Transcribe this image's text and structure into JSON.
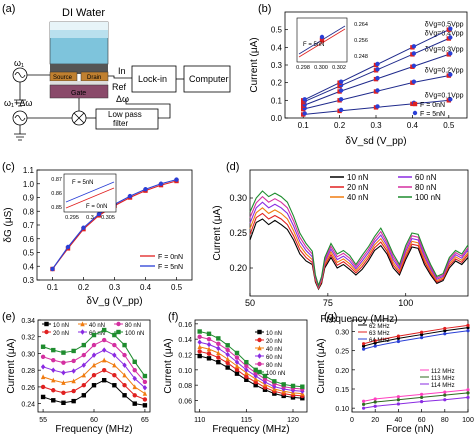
{
  "schematic": {
    "panel_label": "(a)",
    "water_label": "DI Water",
    "source_label": "Source",
    "drain_label": "Drain",
    "gate_label": "Gate",
    "omega1": "ω₁",
    "omega2": "ω₁+Δω",
    "in_label": "In",
    "ref_label": "Ref",
    "delta_omega": "Δω",
    "lockin_label": "Lock-in",
    "computer_label": "Computer",
    "lpf_label_1": "Low pass",
    "lpf_label_2": "filter"
  },
  "colors": {
    "navy": "#1f2a8c",
    "red": "#e02020",
    "blue": "#2a3fd6",
    "black": "#000000",
    "orange": "#f07c10",
    "purple": "#8a2be2",
    "green": "#1e8c2e",
    "magenta": "#d42fa0",
    "dark_green": "#2e6b1e",
    "pink": "#ff3fbf",
    "water": "#7ec4dc",
    "gate": "#8a4a6a",
    "contact": "#c08030"
  },
  "chart_data": [
    {
      "panel": "(b)",
      "type": "line",
      "xlabel": "δV_sd (V_pp)",
      "ylabel": "Current (μA)",
      "xlim": [
        0.05,
        0.55
      ],
      "ylim": [
        0,
        0.6
      ],
      "xticks": [
        "0.1",
        "0.2",
        "0.3",
        "0.4",
        "0.5"
      ],
      "yticks": [
        "0.0",
        "0.1",
        "0.2",
        "0.3",
        "0.4",
        "0.5"
      ],
      "x": [
        0.1,
        0.2,
        0.3,
        0.4,
        0.5
      ],
      "groups": [
        {
          "label": "δVg=0.1Vpp",
          "values": [
            0.02,
            0.04,
            0.06,
            0.08,
            0.1
          ]
        },
        {
          "label": "δVg=0.2Vpp",
          "values": [
            0.05,
            0.1,
            0.15,
            0.2,
            0.24
          ]
        },
        {
          "label": "δVg=0.3Vpp",
          "values": [
            0.07,
            0.15,
            0.22,
            0.29,
            0.36
          ]
        },
        {
          "label": "δVg=0.4Vpp",
          "values": [
            0.09,
            0.18,
            0.27,
            0.36,
            0.45
          ]
        },
        {
          "label": "δVg=0.5Vpp",
          "values": [
            0.1,
            0.2,
            0.3,
            0.4,
            0.5
          ]
        }
      ],
      "legend": [
        "F = 0nN",
        "F = 5nN"
      ],
      "inset": {
        "xticks": [
          "0.298",
          "0.300",
          "0.302"
        ],
        "yticks": [
          "0.248",
          "0.256",
          "0.264"
        ],
        "label": "F = 5nN"
      }
    },
    {
      "panel": "(c)",
      "type": "line",
      "xlabel": "δV_g (V_pp)",
      "ylabel": "δG (μS)",
      "xlim": [
        0.05,
        0.55
      ],
      "ylim": [
        0.3,
        1.1
      ],
      "xticks": [
        "0.1",
        "0.2",
        "0.3",
        "0.4",
        "0.5"
      ],
      "yticks": [
        "0.3",
        "0.4",
        "0.5",
        "0.6",
        "0.7",
        "0.8",
        "0.9",
        "1.0",
        "1.1"
      ],
      "x": [
        0.1,
        0.15,
        0.2,
        0.25,
        0.3,
        0.35,
        0.4,
        0.45,
        0.5
      ],
      "series": [
        {
          "name": "F = 0nN",
          "values": [
            0.38,
            0.53,
            0.67,
            0.77,
            0.84,
            0.9,
            0.95,
            0.99,
            1.02
          ]
        },
        {
          "name": "F = 5nN",
          "values": [
            0.38,
            0.54,
            0.68,
            0.78,
            0.85,
            0.91,
            0.96,
            1.0,
            1.03
          ]
        }
      ],
      "inset": {
        "xticks": [
          "0.295",
          "0.3",
          "0.305"
        ],
        "yticks": [
          "0.85",
          "0.86",
          "0.87"
        ],
        "label_top": "F = 5nN",
        "label_bottom": "F = 0nN"
      }
    },
    {
      "panel": "(d)",
      "type": "line",
      "xlabel": "Frequency (MHz)",
      "ylabel": "Current (μA)",
      "xlim": [
        50,
        120
      ],
      "ylim": [
        0.16,
        0.34
      ],
      "xticks": [
        "50",
        "75",
        "100"
      ],
      "yticks": [
        "0.20",
        "0.25",
        "0.30"
      ],
      "x": [
        50,
        52,
        54,
        56,
        58,
        60,
        62,
        64,
        66,
        68,
        70,
        71,
        72,
        73,
        74,
        76,
        78,
        80,
        82,
        84,
        86,
        88,
        90,
        92,
        94,
        96,
        98,
        100,
        102,
        104,
        106,
        108,
        110,
        112,
        114,
        116,
        118,
        120
      ],
      "series": [
        {
          "name": "10 nN",
          "values": [
            0.24,
            0.265,
            0.27,
            0.262,
            0.268,
            0.262,
            0.255,
            0.24,
            0.22,
            0.21,
            0.205,
            0.18,
            0.17,
            0.178,
            0.2,
            0.215,
            0.2,
            0.205,
            0.198,
            0.19,
            0.198,
            0.21,
            0.225,
            0.232,
            0.22,
            0.2,
            0.19,
            0.212,
            0.23,
            0.228,
            0.205,
            0.19,
            0.178,
            0.182,
            0.2,
            0.21,
            0.205,
            0.215
          ]
        },
        {
          "name": "20 nN",
          "values": [
            0.248,
            0.272,
            0.278,
            0.27,
            0.275,
            0.27,
            0.262,
            0.246,
            0.226,
            0.215,
            0.208,
            0.182,
            0.171,
            0.18,
            0.203,
            0.219,
            0.204,
            0.209,
            0.202,
            0.193,
            0.202,
            0.214,
            0.229,
            0.237,
            0.224,
            0.204,
            0.193,
            0.216,
            0.234,
            0.232,
            0.209,
            0.193,
            0.18,
            0.184,
            0.203,
            0.213,
            0.208,
            0.219
          ]
        },
        {
          "name": "40 nN",
          "values": [
            0.256,
            0.279,
            0.286,
            0.278,
            0.283,
            0.278,
            0.27,
            0.253,
            0.232,
            0.22,
            0.212,
            0.184,
            0.172,
            0.182,
            0.206,
            0.223,
            0.208,
            0.213,
            0.206,
            0.196,
            0.206,
            0.218,
            0.233,
            0.242,
            0.228,
            0.208,
            0.196,
            0.22,
            0.238,
            0.236,
            0.213,
            0.196,
            0.182,
            0.186,
            0.206,
            0.216,
            0.211,
            0.222
          ]
        },
        {
          "name": "60 nN",
          "values": [
            0.264,
            0.286,
            0.294,
            0.286,
            0.291,
            0.286,
            0.278,
            0.26,
            0.238,
            0.225,
            0.216,
            0.186,
            0.173,
            0.184,
            0.209,
            0.227,
            0.212,
            0.217,
            0.21,
            0.199,
            0.21,
            0.222,
            0.237,
            0.247,
            0.232,
            0.212,
            0.199,
            0.224,
            0.242,
            0.24,
            0.217,
            0.199,
            0.184,
            0.188,
            0.209,
            0.219,
            0.214,
            0.226
          ]
        },
        {
          "name": "80 nN",
          "values": [
            0.272,
            0.293,
            0.302,
            0.294,
            0.299,
            0.294,
            0.286,
            0.267,
            0.244,
            0.23,
            0.22,
            0.188,
            0.174,
            0.186,
            0.212,
            0.231,
            0.216,
            0.221,
            0.214,
            0.202,
            0.214,
            0.226,
            0.241,
            0.252,
            0.236,
            0.216,
            0.202,
            0.228,
            0.246,
            0.244,
            0.221,
            0.202,
            0.186,
            0.19,
            0.212,
            0.222,
            0.217,
            0.229
          ]
        },
        {
          "name": "100 nN",
          "values": [
            0.28,
            0.3,
            0.31,
            0.302,
            0.307,
            0.302,
            0.294,
            0.274,
            0.25,
            0.235,
            0.224,
            0.19,
            0.175,
            0.188,
            0.215,
            0.235,
            0.22,
            0.225,
            0.218,
            0.205,
            0.218,
            0.23,
            0.245,
            0.257,
            0.24,
            0.22,
            0.205,
            0.232,
            0.25,
            0.248,
            0.225,
            0.205,
            0.188,
            0.192,
            0.215,
            0.225,
            0.22,
            0.233
          ]
        }
      ]
    },
    {
      "panel": "(e)",
      "type": "line",
      "xlabel": "Frequency (MHz)",
      "ylabel": "Current (μA)",
      "xlim": [
        54.5,
        65.5
      ],
      "ylim": [
        0.23,
        0.34
      ],
      "xticks": [
        "55",
        "60",
        "65"
      ],
      "yticks": [
        "0.24",
        "0.26",
        "0.28",
        "0.30",
        "0.32",
        "0.34"
      ],
      "x": [
        55,
        56,
        57,
        58,
        59,
        60,
        61,
        62,
        63,
        64,
        65
      ],
      "series": [
        {
          "name": "10 nN",
          "values": [
            0.248,
            0.244,
            0.241,
            0.243,
            0.25,
            0.262,
            0.268,
            0.262,
            0.25,
            0.24,
            0.238
          ]
        },
        {
          "name": "20 nN",
          "values": [
            0.26,
            0.256,
            0.253,
            0.255,
            0.262,
            0.274,
            0.28,
            0.274,
            0.262,
            0.25,
            0.245
          ]
        },
        {
          "name": "40 nN",
          "values": [
            0.272,
            0.268,
            0.265,
            0.267,
            0.274,
            0.286,
            0.292,
            0.286,
            0.274,
            0.26,
            0.252
          ]
        },
        {
          "name": "60 nN",
          "values": [
            0.284,
            0.28,
            0.277,
            0.279,
            0.286,
            0.298,
            0.304,
            0.298,
            0.286,
            0.27,
            0.259
          ]
        },
        {
          "name": "80 nN",
          "values": [
            0.296,
            0.292,
            0.289,
            0.291,
            0.298,
            0.31,
            0.316,
            0.31,
            0.298,
            0.28,
            0.266
          ]
        },
        {
          "name": "100 nN",
          "values": [
            0.308,
            0.304,
            0.301,
            0.303,
            0.31,
            0.322,
            0.328,
            0.322,
            0.31,
            0.29,
            0.273
          ]
        }
      ]
    },
    {
      "panel": "(f)",
      "type": "line",
      "xlabel": "Frequency (MHz)",
      "ylabel": "Current (μA)",
      "xlim": [
        109.5,
        121.5
      ],
      "ylim": [
        0.045,
        0.165
      ],
      "xticks": [
        "110",
        "115",
        "120"
      ],
      "yticks": [
        "0.06",
        "0.08",
        "0.10",
        "0.12",
        "0.14",
        "0.16"
      ],
      "x": [
        110,
        111,
        112,
        113,
        114,
        115,
        116,
        117,
        118,
        119,
        120,
        121
      ],
      "series": [
        {
          "name": "10 nN",
          "values": [
            0.118,
            0.115,
            0.11,
            0.103,
            0.095,
            0.087,
            0.08,
            0.074,
            0.069,
            0.066,
            0.064,
            0.063
          ]
        },
        {
          "name": "20 nN",
          "values": [
            0.124,
            0.121,
            0.116,
            0.109,
            0.1,
            0.091,
            0.084,
            0.077,
            0.072,
            0.069,
            0.067,
            0.066
          ]
        },
        {
          "name": "40 nN",
          "values": [
            0.13,
            0.127,
            0.122,
            0.114,
            0.105,
            0.096,
            0.088,
            0.081,
            0.075,
            0.072,
            0.07,
            0.069
          ]
        },
        {
          "name": "60 nN",
          "values": [
            0.136,
            0.133,
            0.128,
            0.12,
            0.11,
            0.1,
            0.092,
            0.084,
            0.078,
            0.075,
            0.073,
            0.072
          ]
        },
        {
          "name": "80 nN",
          "values": [
            0.143,
            0.14,
            0.134,
            0.126,
            0.116,
            0.105,
            0.096,
            0.088,
            0.082,
            0.078,
            0.076,
            0.075
          ]
        },
        {
          "name": "100 nN",
          "values": [
            0.15,
            0.147,
            0.141,
            0.132,
            0.122,
            0.11,
            0.1,
            0.092,
            0.085,
            0.081,
            0.079,
            0.078
          ]
        }
      ]
    },
    {
      "panel": "(g)",
      "type": "line",
      "xlabel": "Force (nN)",
      "ylabel": "Current (μA)",
      "xlim": [
        0,
        100
      ],
      "ylim": [
        0.09,
        0.33
      ],
      "xticks": [
        "0",
        "20",
        "40",
        "60",
        "80",
        "100"
      ],
      "yticks": [
        "0.10",
        "0.15",
        "0.20",
        "0.25",
        "0.30"
      ],
      "x": [
        10,
        20,
        40,
        60,
        80,
        100
      ],
      "series": [
        {
          "name": "62 MHz",
          "values": [
            0.262,
            0.27,
            0.282,
            0.292,
            0.302,
            0.31
          ]
        },
        {
          "name": "63 MHz",
          "values": [
            0.268,
            0.276,
            0.288,
            0.298,
            0.308,
            0.316
          ]
        },
        {
          "name": "64 MHz",
          "values": [
            0.254,
            0.262,
            0.274,
            0.284,
            0.294,
            0.302
          ]
        },
        {
          "name": "112 MHz",
          "values": [
            0.118,
            0.124,
            0.13,
            0.136,
            0.142,
            0.148
          ]
        },
        {
          "name": "113 MHz",
          "values": [
            0.11,
            0.116,
            0.122,
            0.128,
            0.134,
            0.14
          ]
        },
        {
          "name": "114 MHz",
          "values": [
            0.1,
            0.105,
            0.111,
            0.117,
            0.122,
            0.128
          ]
        }
      ]
    }
  ]
}
